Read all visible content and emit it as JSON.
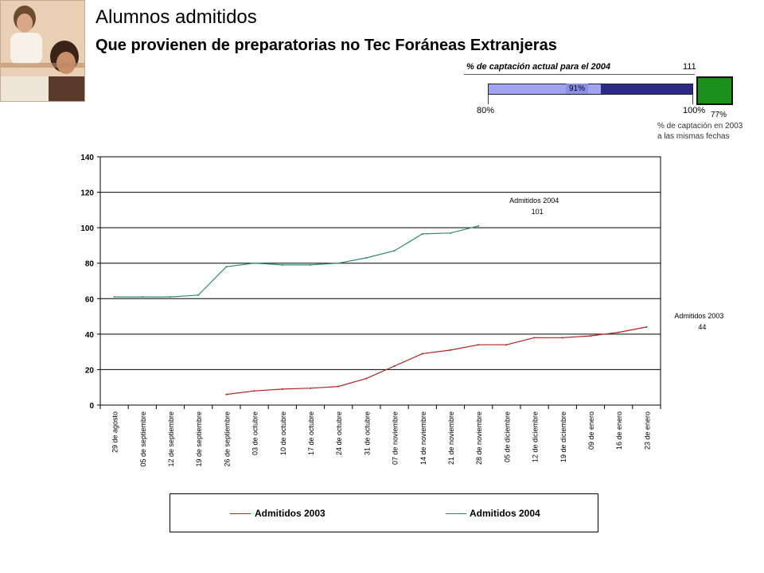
{
  "header": {
    "title": "Alumnos admitidos",
    "subtitle": "Que provienen de preparatorias no Tec Foráneas Extranjeras"
  },
  "gauge": {
    "title": "% de captación actual para el 2004",
    "value_label": "91%",
    "value": 91,
    "min_label": "80%",
    "max_label": "100%",
    "range": [
      80,
      100
    ],
    "fill_color": "#a0a3ef",
    "track_color": "#2b2b86"
  },
  "indicator": {
    "count_label": "111",
    "pct_label": "77%",
    "color": "#1a8f1a",
    "note_line1": "% de captación en 2003",
    "note_line2": "a las mismas fechas"
  },
  "chart_data": {
    "type": "line",
    "title": "",
    "xlabel": "",
    "ylabel": "",
    "ylim": [
      0,
      140
    ],
    "yticks": [
      "0",
      "20",
      "40",
      "60",
      "80",
      "100",
      "120",
      "140"
    ],
    "grid": true,
    "legend_position": "bottom",
    "categories": [
      "29 de agosto",
      "05 de septiembre",
      "12 de septiembre",
      "19 de septiembre",
      "26 de septiembre",
      "03 de octubre",
      "10 de octubre",
      "17 de octubre",
      "24 de octubre",
      "31 de octubre",
      "07 de noviembre",
      "14 de noviembre",
      "21 de noviembre",
      "28 de noviembre",
      "05 de diciembre",
      "12 de diciembre",
      "19 de diciembre",
      "09 de enero",
      "16 de enero",
      "23 de enero"
    ],
    "series": [
      {
        "name": "Admitidos 2003",
        "color": "#b22222",
        "values": [
          null,
          null,
          null,
          null,
          6,
          8,
          9,
          9.5,
          10.5,
          15,
          22,
          29,
          31,
          34,
          34,
          38,
          38,
          39,
          41,
          44
        ]
      },
      {
        "name": "Admitidos 2004",
        "color": "#2e8b6e",
        "values": [
          61,
          61,
          61,
          62,
          78,
          80,
          79,
          79,
          80,
          83,
          87,
          96.5,
          97,
          101,
          null,
          null,
          null,
          null,
          null,
          null
        ]
      }
    ],
    "annotations": [
      {
        "series": "Admitidos 2004",
        "label": "Admitidos 2004",
        "value_label": "101"
      },
      {
        "series": "Admitidos 2003",
        "label": "Admitidos 2003",
        "value_label": "44"
      }
    ]
  }
}
